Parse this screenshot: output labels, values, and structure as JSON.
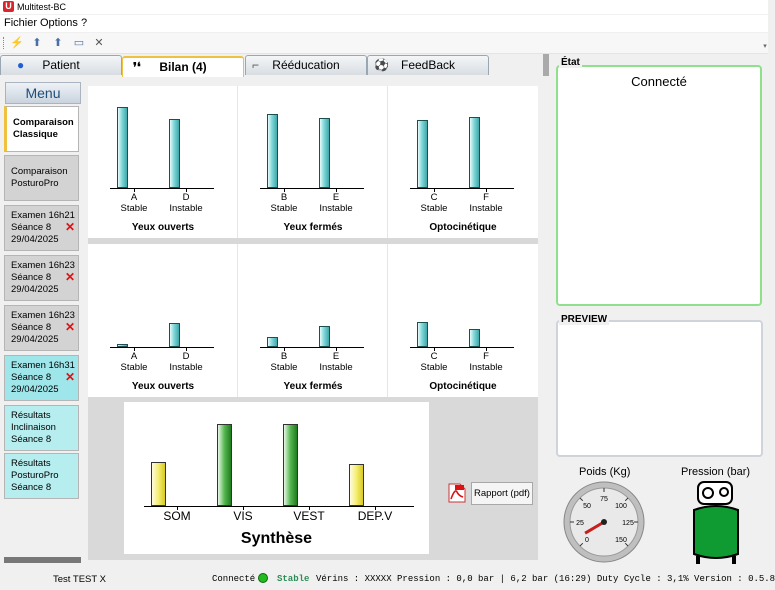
{
  "app": {
    "title": "Multitest-BC",
    "icon_letter": "U"
  },
  "menu": {
    "items": [
      "Fichier",
      "Options",
      "?"
    ]
  },
  "toolbar": {
    "icons": [
      "connect-icon",
      "import-icon",
      "export-icon",
      "open-folder-icon",
      "tools-icon"
    ]
  },
  "tabs": [
    {
      "label": "Patient",
      "icon": "person-icon",
      "active": false
    },
    {
      "label": "Bilan (4)",
      "icon": "footprints-icon",
      "active": true
    },
    {
      "label": "Rééducation",
      "icon": "boot-icon",
      "active": false
    },
    {
      "label": "FeedBack",
      "icon": "ball-icon",
      "active": false
    }
  ],
  "sidebar": {
    "title": "Menu",
    "items": [
      {
        "lines": [
          "Comparaison",
          "Classique"
        ],
        "style": "sel",
        "remove": false
      },
      {
        "lines": [
          "Comparaison",
          "PosturoPro"
        ],
        "style": "grey",
        "remove": false
      },
      {
        "lines": [
          "Examen 16h21",
          "Séance 8",
          "29/04/2025"
        ],
        "style": "grey",
        "remove": true
      },
      {
        "lines": [
          "Examen 16h23",
          "Séance 8",
          "29/04/2025"
        ],
        "style": "grey",
        "remove": true
      },
      {
        "lines": [
          "Examen 16h23",
          "Séance 8",
          "29/04/2025"
        ],
        "style": "grey",
        "remove": true
      },
      {
        "lines": [
          "Examen 16h31",
          "Séance 8",
          "29/04/2025"
        ],
        "style": "cyan",
        "remove": true
      },
      {
        "lines": [
          "Résultats",
          "Inclinaison",
          "Séance 8"
        ],
        "style": "cyanlight",
        "remove": false
      },
      {
        "lines": [
          "Résultats",
          "PosturoPro",
          "Séance 8"
        ],
        "style": "cyanlight",
        "remove": false
      }
    ],
    "remove_glyph": "✕"
  },
  "chart_data": [
    {
      "type": "bar",
      "title": "Yeux ouverts",
      "categories": [
        "A",
        "D"
      ],
      "sublabels": [
        "Stable",
        "Instable"
      ],
      "values": [
        85,
        73
      ],
      "ylim": [
        0,
        100
      ]
    },
    {
      "type": "bar",
      "title": "Yeux fermés",
      "categories": [
        "B",
        "E"
      ],
      "sublabels": [
        "Stable",
        "Instable"
      ],
      "values": [
        78,
        74
      ],
      "ylim": [
        0,
        100
      ]
    },
    {
      "type": "bar",
      "title": "Optocinétique",
      "categories": [
        "C",
        "F"
      ],
      "sublabels": [
        "Stable",
        "Instable"
      ],
      "values": [
        72,
        75
      ],
      "ylim": [
        0,
        100
      ]
    },
    {
      "type": "bar",
      "title": "Yeux ouverts",
      "categories": [
        "A",
        "D"
      ],
      "sublabels": [
        "Stable",
        "Instable"
      ],
      "values": [
        3,
        25
      ],
      "ylim": [
        0,
        100
      ]
    },
    {
      "type": "bar",
      "title": "Yeux fermés",
      "categories": [
        "B",
        "E"
      ],
      "sublabels": [
        "Stable",
        "Instable"
      ],
      "values": [
        10,
        22
      ],
      "ylim": [
        0,
        100
      ]
    },
    {
      "type": "bar",
      "title": "Optocinétique",
      "categories": [
        "C",
        "F"
      ],
      "sublabels": [
        "Stable",
        "Instable"
      ],
      "values": [
        26,
        19
      ],
      "ylim": [
        0,
        100
      ]
    },
    {
      "type": "bar",
      "title": "Synthèse",
      "categories": [
        "SOM",
        "VIS",
        "VEST",
        "DEP.V"
      ],
      "values": [
        55,
        102,
        102,
        52
      ],
      "colors": [
        "#f5ee70",
        "#54b64f",
        "#54b64f",
        "#f5ee70"
      ],
      "ylim": [
        0,
        110
      ]
    }
  ],
  "report": {
    "label": "Rapport (pdf)"
  },
  "etat": {
    "title": "État",
    "status": "Connecté"
  },
  "preview": {
    "title": "PREVIEW"
  },
  "gauges": {
    "poids": {
      "label": "Poids (Kg)",
      "ticks": [
        "0",
        "25",
        "50",
        "75",
        "100",
        "125",
        "150"
      ],
      "value": 8
    },
    "pression": {
      "label": "Pression (bar)"
    }
  },
  "statusbar": {
    "patient": "Test TEST X",
    "connection": "Connecté",
    "state": "Stable",
    "rest": "Vérins : XXXXX  Pression : 0,0 bar | 6,2 bar (16:29)  Duty Cycle :  3,1%  Version : 0.5.8"
  },
  "colors": {
    "accent_tab": "#f0c040",
    "led": "#22bb22",
    "state": "#2e8b57"
  }
}
